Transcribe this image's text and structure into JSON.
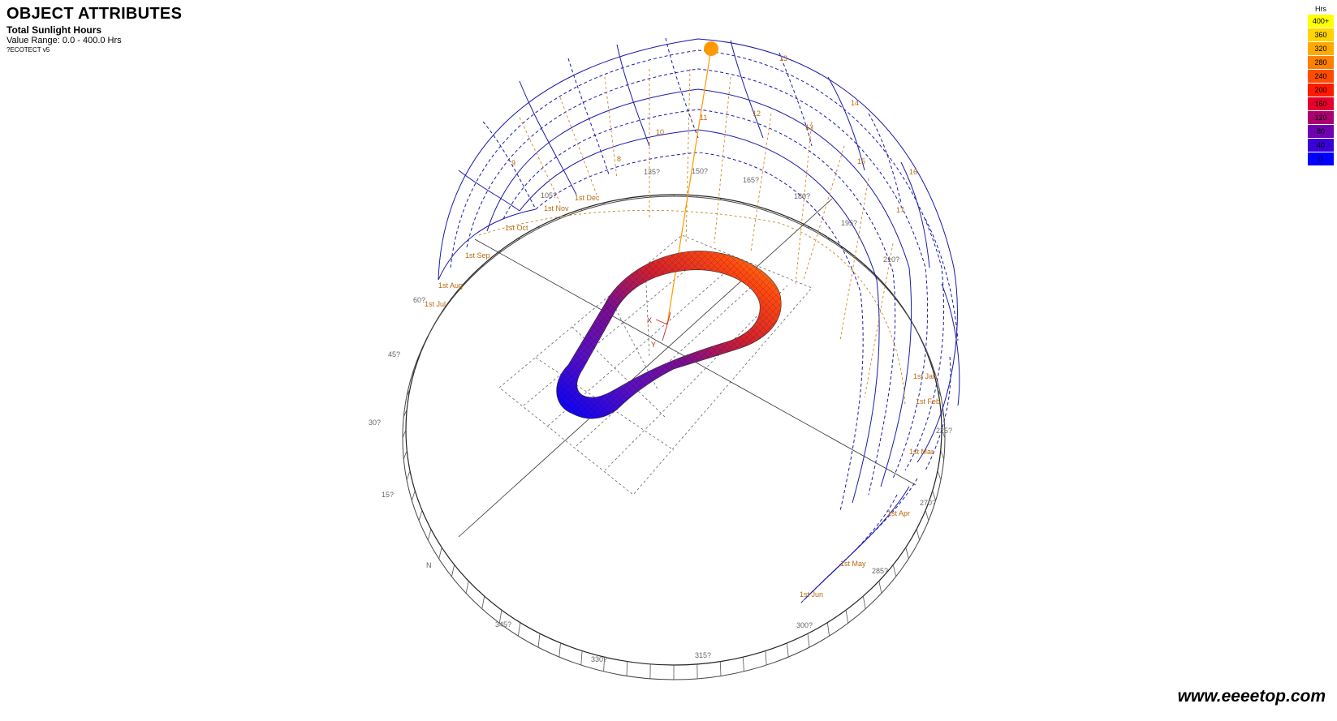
{
  "header": {
    "title": "OBJECT ATTRIBUTES",
    "subtitle": "Total  Sunlight Hours",
    "value_range": "Value Range: 0.0 - 400.0 Hrs",
    "version": "?ECOTECT v5"
  },
  "legend": {
    "unit": "Hrs",
    "items": [
      {
        "label": "400+",
        "color": "#ffff00"
      },
      {
        "label": "360",
        "color": "#ffd400"
      },
      {
        "label": "320",
        "color": "#ffaa00"
      },
      {
        "label": "280",
        "color": "#ff7f00"
      },
      {
        "label": "240",
        "color": "#ff4d00"
      },
      {
        "label": "200",
        "color": "#ff1a00"
      },
      {
        "label": "160",
        "color": "#e6002e"
      },
      {
        "label": "120",
        "color": "#aa0070"
      },
      {
        "label": "80",
        "color": "#7000b0"
      },
      {
        "label": "40",
        "color": "#3a00d8"
      },
      {
        "label": "0",
        "color": "#0000ff"
      }
    ]
  },
  "azimuth_labels": [
    "135?",
    "150?",
    "165?",
    "180?",
    "195?",
    "210?",
    "225?",
    "270?",
    "285?",
    "300?",
    "315?",
    "330?",
    "345?",
    "N",
    "15?",
    "30?",
    "45?",
    "60?",
    "105?"
  ],
  "month_labels": [
    "1st Dec",
    "1st Nov",
    "1st Oct",
    "1st Sep",
    "1st Aug",
    "1st Jul",
    "1st Jun",
    "1st May",
    "1st Apr",
    "1st Mar",
    "1st Feb",
    "1st Jan"
  ],
  "hour_labels": [
    "10",
    "11",
    "12",
    "13",
    "13",
    "14",
    "15",
    "16",
    "17",
    "8",
    "9"
  ],
  "axis_labels": {
    "x": "X",
    "y": "Y"
  },
  "watermark": "www.eeeetop.com",
  "colors": {
    "sunpath": "#1a1aaa",
    "sun": "#ff9900",
    "analemma": "#cc8822"
  }
}
